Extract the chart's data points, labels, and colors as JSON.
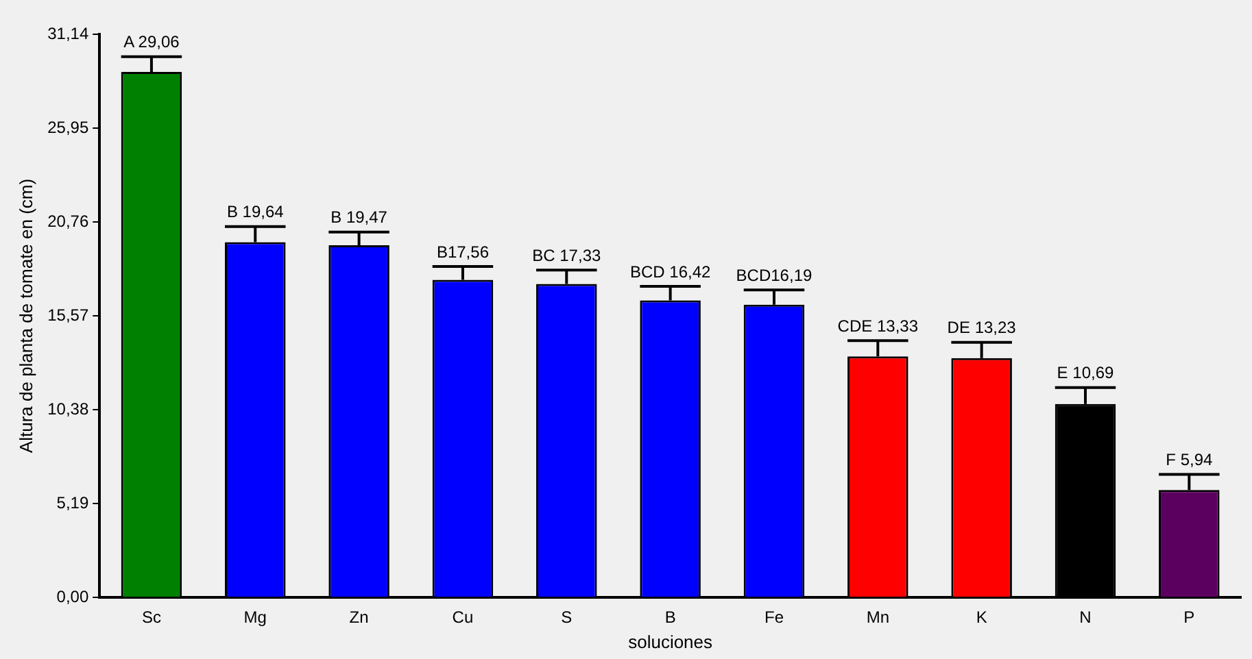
{
  "chart_data": {
    "type": "bar",
    "xlabel": "soluciones",
    "ylabel": "Altura de planta de tomate en (cm)",
    "categories": [
      "Sc",
      "Mg",
      "Zn",
      "Cu",
      "S",
      "B",
      "Fe",
      "Mn",
      "K",
      "N",
      "P"
    ],
    "values": [
      29.06,
      19.64,
      19.47,
      17.56,
      17.33,
      16.42,
      16.19,
      13.33,
      13.23,
      10.69,
      5.94
    ],
    "colors": [
      "#008000",
      "#0000ff",
      "#0000ff",
      "#0000ff",
      "#0000ff",
      "#0000ff",
      "#0000ff",
      "#ff0000",
      "#ff0000",
      "#000000",
      "#5c0060"
    ],
    "errors": [
      [
        29.06,
        29.9
      ],
      [
        19.64,
        20.5
      ],
      [
        19.47,
        20.2
      ],
      [
        17.56,
        18.3
      ],
      [
        17.33,
        18.1
      ],
      [
        16.42,
        17.2
      ],
      [
        16.19,
        17.0
      ],
      [
        13.33,
        14.2
      ],
      [
        13.23,
        14.1
      ],
      [
        10.69,
        11.6
      ],
      [
        5.94,
        6.8
      ]
    ],
    "value_labels": [
      "A 29,06",
      "B 19,64",
      "B 19,47",
      "B17,56",
      "BC 17,33",
      "BCD 16,42",
      "BCD16,19",
      "CDE 13,33",
      "DE 13,23",
      "E 10,69",
      "F 5,94"
    ],
    "ylim": [
      0,
      31.14
    ],
    "yticks": [
      {
        "value": 0,
        "label": "0,00"
      },
      {
        "value": 5.19,
        "label": "5,19"
      },
      {
        "value": 10.38,
        "label": "10,38"
      },
      {
        "value": 15.57,
        "label": "15,57"
      },
      {
        "value": 20.76,
        "label": "20,76"
      },
      {
        "value": 25.95,
        "label": "25,95"
      },
      {
        "value": 31.14,
        "label": "31,14"
      }
    ],
    "grid": false,
    "legend": false
  }
}
